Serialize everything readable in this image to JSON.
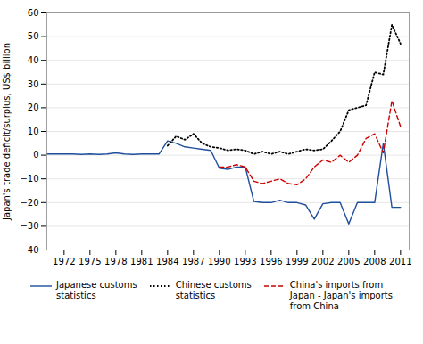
{
  "chart_data": {
    "type": "line",
    "x": [
      1970,
      1971,
      1972,
      1973,
      1974,
      1975,
      1976,
      1977,
      1978,
      1979,
      1980,
      1981,
      1982,
      1983,
      1984,
      1985,
      1986,
      1987,
      1988,
      1989,
      1990,
      1991,
      1992,
      1993,
      1994,
      1995,
      1996,
      1997,
      1998,
      1999,
      2000,
      2001,
      2002,
      2003,
      2004,
      2005,
      2006,
      2007,
      2008,
      2009,
      2010,
      2011
    ],
    "series": [
      {
        "name": "Japanese customs\nstatistics",
        "color": "#1f4e9c",
        "line_style": "solid",
        "values": [
          0.5,
          0.5,
          0.5,
          0.5,
          0.3,
          0.5,
          0.3,
          0.5,
          1.0,
          0.5,
          0.3,
          0.5,
          0.5,
          0.5,
          6.0,
          5.0,
          3.5,
          3.0,
          2.5,
          2.0,
          -5.5,
          -6.0,
          -5.0,
          -5.0,
          -19.5,
          -20.0,
          -20.0,
          -19.0,
          -20.0,
          -20.0,
          -21.0,
          -27.0,
          -20.5,
          -20.0,
          -20.0,
          -29.0,
          -20.0,
          -20.0,
          -20.0,
          5.0,
          -22.0,
          -22.0
        ]
      },
      {
        "name": "Chinese customs\nstatistics",
        "color": "#000000",
        "line_style": "dotted",
        "values": [
          null,
          null,
          null,
          null,
          null,
          null,
          null,
          null,
          null,
          null,
          null,
          null,
          null,
          null,
          4.0,
          8.0,
          6.5,
          9.0,
          5.0,
          3.5,
          3.0,
          2.0,
          2.5,
          2.0,
          0.5,
          1.5,
          0.5,
          1.5,
          0.5,
          1.5,
          2.5,
          2.0,
          2.5,
          6.0,
          10.0,
          19.0,
          20.0,
          21.0,
          35.0,
          34.0,
          55.0,
          47.0
        ]
      },
      {
        "name": "China's imports from\nJapan - Japan's imports\nfrom China",
        "color": "#cc0000",
        "line_style": "dashed",
        "values": [
          null,
          null,
          null,
          null,
          null,
          null,
          null,
          null,
          null,
          null,
          null,
          null,
          null,
          null,
          null,
          null,
          null,
          null,
          null,
          null,
          -5.0,
          -5.0,
          -4.0,
          -5.0,
          -11.0,
          -12.0,
          -11.0,
          -10.0,
          -12.0,
          -12.5,
          -10.0,
          -5.0,
          -2.0,
          -3.0,
          0.0,
          -3.0,
          0.0,
          7.0,
          9.0,
          1.0,
          23.0,
          12.0
        ]
      }
    ],
    "ylabel": "Japan's trade deficit/surplus, US$ billion",
    "ylim": [
      -40,
      60
    ],
    "yticks": [
      -40,
      -30,
      -20,
      -10,
      0,
      10,
      20,
      30,
      40,
      50,
      60
    ],
    "xlim": [
      1970,
      2012
    ],
    "xticks": [
      1972,
      1975,
      1978,
      1981,
      1984,
      1987,
      1990,
      1993,
      1996,
      1999,
      2002,
      2005,
      2008,
      2011
    ],
    "grid": true,
    "legend": "bottom"
  }
}
